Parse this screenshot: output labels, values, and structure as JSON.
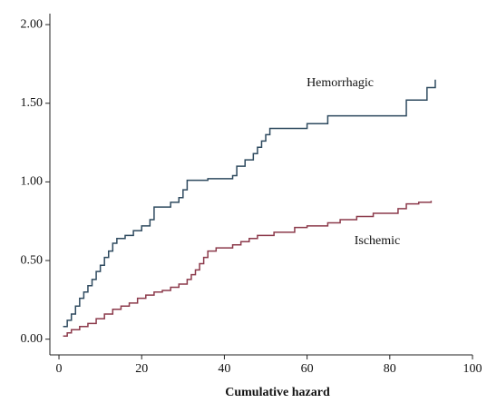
{
  "chart_data": {
    "type": "step",
    "xlabel": "Cumulative hazard",
    "xlim": [
      -2.2,
      100
    ],
    "ylim": [
      -0.1,
      2.07
    ],
    "xticks": [
      0,
      20,
      40,
      60,
      80,
      100
    ],
    "yticks": [
      {
        "value": 0,
        "label": "0.00"
      },
      {
        "value": 0.5,
        "label": "0.50"
      },
      {
        "value": 1,
        "label": "1.00"
      },
      {
        "value": 1.5,
        "label": "1.50"
      },
      {
        "value": 2,
        "label": "2.00"
      }
    ],
    "grid": false,
    "series": [
      {
        "name": "Hemorrhagic",
        "color": "#2e4a5f",
        "x": [
          1,
          2,
          3,
          4,
          5,
          6,
          7,
          8,
          9,
          10,
          11,
          12,
          13,
          14,
          16,
          18,
          20,
          22,
          23,
          27,
          29,
          30,
          31,
          36,
          42,
          43,
          45,
          47,
          48,
          49,
          50,
          51,
          60,
          65,
          84,
          89,
          91
        ],
        "values": [
          0.08,
          0.12,
          0.16,
          0.21,
          0.26,
          0.3,
          0.34,
          0.38,
          0.43,
          0.47,
          0.52,
          0.56,
          0.61,
          0.64,
          0.66,
          0.69,
          0.72,
          0.76,
          0.84,
          0.87,
          0.9,
          0.95,
          1.01,
          1.02,
          1.04,
          1.1,
          1.14,
          1.18,
          1.22,
          1.26,
          1.3,
          1.34,
          1.37,
          1.42,
          1.52,
          1.6,
          1.65
        ]
      },
      {
        "name": "Ischemic",
        "color": "#8c3a4b",
        "x": [
          1,
          2,
          3,
          5,
          7,
          9,
          11,
          13,
          15,
          17,
          19,
          21,
          23,
          25,
          27,
          29,
          31,
          32,
          33,
          34,
          35,
          36,
          38,
          42,
          44,
          46,
          48,
          52,
          57,
          60,
          65,
          68,
          72,
          76,
          82,
          84,
          87,
          90
        ],
        "values": [
          0.02,
          0.04,
          0.06,
          0.08,
          0.1,
          0.13,
          0.16,
          0.19,
          0.21,
          0.23,
          0.26,
          0.28,
          0.3,
          0.31,
          0.33,
          0.35,
          0.38,
          0.41,
          0.44,
          0.48,
          0.52,
          0.56,
          0.58,
          0.6,
          0.62,
          0.64,
          0.66,
          0.68,
          0.71,
          0.72,
          0.74,
          0.76,
          0.78,
          0.8,
          0.83,
          0.86,
          0.87,
          0.88
        ]
      }
    ]
  }
}
